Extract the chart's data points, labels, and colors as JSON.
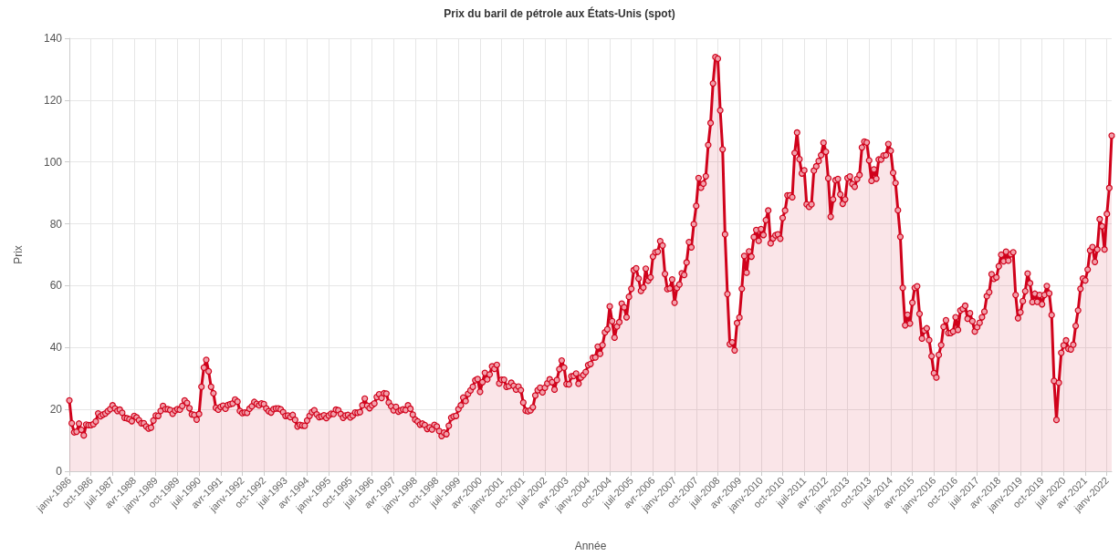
{
  "chart_data": {
    "type": "area",
    "title": "Prix du baril de pétrole aux États-Unis (spot)",
    "xlabel": "Année",
    "ylabel": "Prix",
    "categories": [
      "janv-1986",
      null,
      null,
      null,
      null,
      null,
      null,
      null,
      null,
      "oct-1986",
      null,
      null,
      null,
      null,
      null,
      null,
      null,
      null,
      "juil-1987",
      null,
      null,
      null,
      null,
      null,
      null,
      null,
      null,
      "avr-1988",
      null,
      null,
      null,
      null,
      null,
      null,
      null,
      null,
      "janv-1989",
      null,
      null,
      null,
      null,
      null,
      null,
      null,
      null,
      "oct-1989",
      null,
      null,
      null,
      null,
      null,
      null,
      null,
      null,
      "juil-1990",
      null,
      null,
      null,
      null,
      null,
      null,
      null,
      null,
      "avr-1991",
      null,
      null,
      null,
      null,
      null,
      null,
      null,
      null,
      "janv-1992",
      null,
      null,
      null,
      null,
      null,
      null,
      null,
      null,
      "oct-1992",
      null,
      null,
      null,
      null,
      null,
      null,
      null,
      null,
      "juil-1993",
      null,
      null,
      null,
      null,
      null,
      null,
      null,
      null,
      "avr-1994",
      null,
      null,
      null,
      null,
      null,
      null,
      null,
      null,
      "janv-1995",
      null,
      null,
      null,
      null,
      null,
      null,
      null,
      null,
      "oct-1995",
      null,
      null,
      null,
      null,
      null,
      null,
      null,
      null,
      "juil-1996",
      null,
      null,
      null,
      null,
      null,
      null,
      null,
      null,
      "avr-1997",
      null,
      null,
      null,
      null,
      null,
      null,
      null,
      null,
      "janv-1998",
      null,
      null,
      null,
      null,
      null,
      null,
      null,
      null,
      "oct-1998",
      null,
      null,
      null,
      null,
      null,
      null,
      null,
      null,
      "juil-1999",
      null,
      null,
      null,
      null,
      null,
      null,
      null,
      null,
      "avr-2000",
      null,
      null,
      null,
      null,
      null,
      null,
      null,
      null,
      "janv-2001",
      null,
      null,
      null,
      null,
      null,
      null,
      null,
      null,
      "oct-2001",
      null,
      null,
      null,
      null,
      null,
      null,
      null,
      null,
      "juil-2002",
      null,
      null,
      null,
      null,
      null,
      null,
      null,
      null,
      "avr-2003",
      null,
      null,
      null,
      null,
      null,
      null,
      null,
      null,
      "janv-2004",
      null,
      null,
      null,
      null,
      null,
      null,
      null,
      null,
      "oct-2004",
      null,
      null,
      null,
      null,
      null,
      null,
      null,
      null,
      "juil-2005",
      null,
      null,
      null,
      null,
      null,
      null,
      null,
      null,
      "avr-2006",
      null,
      null,
      null,
      null,
      null,
      null,
      null,
      null,
      "janv-2007",
      null,
      null,
      null,
      null,
      null,
      null,
      null,
      null,
      "oct-2007",
      null,
      null,
      null,
      null,
      null,
      null,
      null,
      null,
      "juil-2008",
      null,
      null,
      null,
      null,
      null,
      null,
      null,
      null,
      "avr-2009",
      null,
      null,
      null,
      null,
      null,
      null,
      null,
      null,
      "janv-2010",
      null,
      null,
      null,
      null,
      null,
      null,
      null,
      null,
      "oct-2010",
      null,
      null,
      null,
      null,
      null,
      null,
      null,
      null,
      "juil-2011",
      null,
      null,
      null,
      null,
      null,
      null,
      null,
      null,
      "avr-2012",
      null,
      null,
      null,
      null,
      null,
      null,
      null,
      null,
      "janv-2013",
      null,
      null,
      null,
      null,
      null,
      null,
      null,
      null,
      "oct-2013",
      null,
      null,
      null,
      null,
      null,
      null,
      null,
      null,
      "juil-2014",
      null,
      null,
      null,
      null,
      null,
      null,
      null,
      null,
      "avr-2015",
      null,
      null,
      null,
      null,
      null,
      null,
      null,
      null,
      "janv-2016",
      null,
      null,
      null,
      null,
      null,
      null,
      null,
      null,
      "oct-2016",
      null,
      null,
      null,
      null,
      null,
      null,
      null,
      null,
      "juil-2017",
      null,
      null,
      null,
      null,
      null,
      null,
      null,
      null,
      "avr-2018",
      null,
      null,
      null,
      null,
      null,
      null,
      null,
      null,
      "janv-2019",
      null,
      null,
      null,
      null,
      null,
      null,
      null,
      null,
      "oct-2019",
      null,
      null,
      null,
      null,
      null,
      null,
      null,
      null,
      "juil-2020",
      null,
      null,
      null,
      null,
      null,
      null,
      null,
      null,
      "avr-2021",
      null,
      null,
      null,
      null,
      null,
      null,
      null,
      null,
      "janv-2022",
      null,
      null
    ],
    "series": [
      {
        "color": "#d0021b",
        "values": [
          22.9,
          15.5,
          12.6,
          12.8,
          15.4,
          13.4,
          11.6,
          15.1,
          14.9,
          14.9,
          15.2,
          16.1,
          18.7,
          17.8,
          18.3,
          18.7,
          19.4,
          20.1,
          21.3,
          20.3,
          19.5,
          19.9,
          18.9,
          17.3,
          17.1,
          16.8,
          16.2,
          17.9,
          17.4,
          16.5,
          15.5,
          15.5,
          14.5,
          13.8,
          14.1,
          16.4,
          18.0,
          17.9,
          19.5,
          21.1,
          20.1,
          20.1,
          19.8,
          18.6,
          19.6,
          20.1,
          19.9,
          21.1,
          22.9,
          22.1,
          20.4,
          18.4,
          18.2,
          16.7,
          18.5,
          27.3,
          33.5,
          36.0,
          32.3,
          27.3,
          25.2,
          20.5,
          19.9,
          20.8,
          21.2,
          20.2,
          21.4,
          21.7,
          21.9,
          23.2,
          22.5,
          19.5,
          18.8,
          19.0,
          18.9,
          20.2,
          21.0,
          22.4,
          21.8,
          21.3,
          21.9,
          21.7,
          20.3,
          19.4,
          19.0,
          20.1,
          20.3,
          20.3,
          20.0,
          19.1,
          17.9,
          18.0,
          17.5,
          18.2,
          16.6,
          14.5,
          15.0,
          14.8,
          14.7,
          16.4,
          17.9,
          19.1,
          19.7,
          18.4,
          17.5,
          17.7,
          18.1,
          17.2,
          18.0,
          18.6,
          18.5,
          19.9,
          19.7,
          18.5,
          17.3,
          18.0,
          18.2,
          17.4,
          18.0,
          19.0,
          18.9,
          19.1,
          21.3,
          23.5,
          21.2,
          20.4,
          21.3,
          21.9,
          24.0,
          24.9,
          23.7,
          25.2,
          25.1,
          22.2,
          21.0,
          19.7,
          20.8,
          19.3,
          19.7,
          20.0,
          19.8,
          21.3,
          20.2,
          18.3,
          16.7,
          16.1,
          15.1,
          15.4,
          14.9,
          13.7,
          14.2,
          13.5,
          15.0,
          14.5,
          13.0,
          11.4,
          12.5,
          12.0,
          14.7,
          17.3,
          17.7,
          17.9,
          20.1,
          21.3,
          23.8,
          22.7,
          25.0,
          26.1,
          27.3,
          29.4,
          29.8,
          25.7,
          28.8,
          31.8,
          29.7,
          31.3,
          33.9,
          33.1,
          34.4,
          28.4,
          29.6,
          29.6,
          27.3,
          27.5,
          28.6,
          27.6,
          26.4,
          27.4,
          26.2,
          22.2,
          19.6,
          19.4,
          19.7,
          20.7,
          24.5,
          26.2,
          27.0,
          25.5,
          27.0,
          28.4,
          29.7,
          28.8,
          26.4,
          29.5,
          33.0,
          35.8,
          33.5,
          28.2,
          28.1,
          30.7,
          30.8,
          31.6,
          28.3,
          30.3,
          31.1,
          32.1,
          34.3,
          34.7,
          36.7,
          36.8,
          40.3,
          38.0,
          40.8,
          44.9,
          45.9,
          53.3,
          48.5,
          43.2,
          46.8,
          48.2,
          54.2,
          53.0,
          49.8,
          56.4,
          59.0,
          65.0,
          65.6,
          62.3,
          58.3,
          59.4,
          65.5,
          61.6,
          62.7,
          69.4,
          70.8,
          71.0,
          74.4,
          73.0,
          63.8,
          58.9,
          59.1,
          62.0,
          54.5,
          59.3,
          60.4,
          64.0,
          63.5,
          67.5,
          74.1,
          72.4,
          79.9,
          85.8,
          94.8,
          91.7,
          93.0,
          95.4,
          105.5,
          112.6,
          125.4,
          133.9,
          133.4,
          116.7,
          104.1,
          76.6,
          57.3,
          41.1,
          41.7,
          39.1,
          47.9,
          49.7,
          59.0,
          69.6,
          64.2,
          71.1,
          69.4,
          75.7,
          78.0,
          74.5,
          78.3,
          76.4,
          81.2,
          84.3,
          73.7,
          75.3,
          76.3,
          76.6,
          75.2,
          81.9,
          84.3,
          89.2,
          89.2,
          88.6,
          102.9,
          109.5,
          100.9,
          96.3,
          97.3,
          86.3,
          85.5,
          86.3,
          97.2,
          98.6,
          100.3,
          102.2,
          106.2,
          103.3,
          94.7,
          82.3,
          87.9,
          94.1,
          94.5,
          89.5,
          86.5,
          87.9,
          94.8,
          95.3,
          92.9,
          92.0,
          94.5,
          95.8,
          104.7,
          106.6,
          106.3,
          100.5,
          93.9,
          97.6,
          94.6,
          100.8,
          100.8,
          102.1,
          102.2,
          105.8,
          103.6,
          96.5,
          93.2,
          84.4,
          75.8,
          59.3,
          47.2,
          50.6,
          47.8,
          54.5,
          59.3,
          59.8,
          50.9,
          42.9,
          45.5,
          46.2,
          42.4,
          37.2,
          31.7,
          30.3,
          37.6,
          40.8,
          46.7,
          48.8,
          44.7,
          44.7,
          45.2,
          49.8,
          45.7,
          52.0,
          52.5,
          53.5,
          49.3,
          51.1,
          48.5,
          45.2,
          46.6,
          48.0,
          49.8,
          51.6,
          56.6,
          57.9,
          63.7,
          62.2,
          62.7,
          66.3,
          70.0,
          67.9,
          71.0,
          68.1,
          70.2,
          70.8,
          57.0,
          49.5,
          51.4,
          55.0,
          58.2,
          63.9,
          60.8,
          54.7,
          57.4,
          54.8,
          57.0,
          54.0,
          57.0,
          59.9,
          57.5,
          50.5,
          29.2,
          16.6,
          28.6,
          38.3,
          40.7,
          42.3,
          39.6,
          39.4,
          40.9,
          47.0,
          52.0,
          59.0,
          62.3,
          61.7,
          65.2,
          71.4,
          72.5,
          67.7,
          71.7,
          81.5,
          79.2,
          71.7,
          83.2,
          91.6,
          108.5
        ]
      }
    ],
    "ylim": [
      0,
      140
    ],
    "yticks": [
      0,
      20,
      40,
      60,
      80,
      100,
      120,
      140
    ],
    "grid": true,
    "marker": "circle",
    "line_style": "solid"
  }
}
